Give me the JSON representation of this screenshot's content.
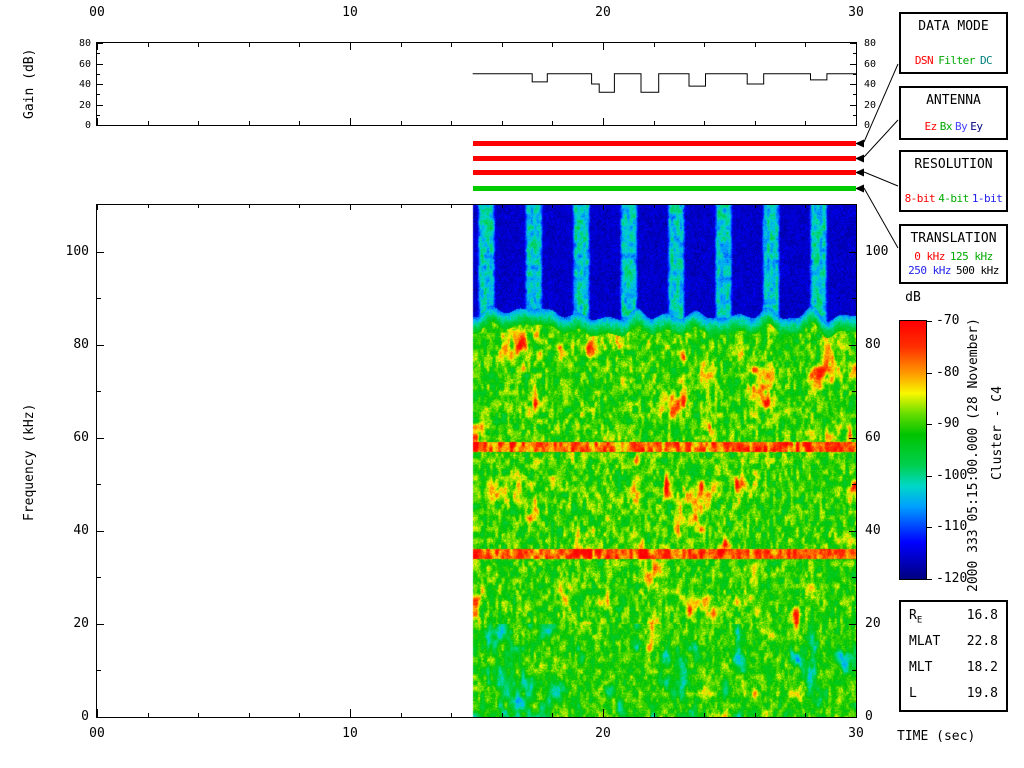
{
  "side_text": {
    "timestamp": "2000 333 05:15:00.000 (28 November)",
    "spacecraft": "Cluster - C4"
  },
  "axes": {
    "gain_label": "Gain (dB)",
    "freq_label": "Frequency (kHz)",
    "time_label": "TIME (sec)",
    "colorbar_label": "dB",
    "time_tick_labels": [
      "00",
      "10",
      "20",
      "30"
    ],
    "time_tick_values": [
      0,
      10,
      20,
      30
    ],
    "gain_tick_values": [
      0,
      20,
      40,
      60,
      80
    ],
    "freq_tick_values": [
      0,
      20,
      40,
      60,
      80,
      100
    ],
    "colorbar_tick_values": [
      -70,
      -80,
      -90,
      -100,
      -110,
      -120
    ]
  },
  "legend_boxes": [
    {
      "title": "DATA MODE",
      "items": [
        {
          "label": "DSN",
          "color": "#ff0000"
        },
        {
          "label": "Filter",
          "color": "#00aa00"
        },
        {
          "label": "DC",
          "color": "#008080"
        }
      ]
    },
    {
      "title": "ANTENNA",
      "items": [
        {
          "label": "Ez",
          "color": "#ff0000"
        },
        {
          "label": "Bx",
          "color": "#00aa00"
        },
        {
          "label": "By",
          "color": "#4444ff"
        },
        {
          "label": "Ey",
          "color": "#000080"
        }
      ]
    },
    {
      "title": "RESOLUTION",
      "items": [
        {
          "label": "8-bit",
          "color": "#ff0000"
        },
        {
          "label": "4-bit",
          "color": "#00aa00"
        },
        {
          "label": "1-bit",
          "color": "#2222ee"
        }
      ]
    },
    {
      "title": "TRANSLATION",
      "items": [
        {
          "label": "0 kHz",
          "color": "#ff0000"
        },
        {
          "label": "125 kHz",
          "color": "#00aa00"
        },
        {
          "label": "250 kHz",
          "color": "#2222ee"
        },
        {
          "label": "500 kHz",
          "color": "#000000"
        }
      ]
    }
  ],
  "status_bars": [
    {
      "name": "data-mode-active-bar",
      "color": "#ff0000",
      "t_start": 14.85,
      "t_end": 30
    },
    {
      "name": "antenna-active-bar",
      "color": "#ff0000",
      "t_start": 14.85,
      "t_end": 30
    },
    {
      "name": "resolution-active-bar",
      "color": "#ff0000",
      "t_start": 14.85,
      "t_end": 30
    },
    {
      "name": "translation-active-bar",
      "color": "#00cc00",
      "t_start": 14.85,
      "t_end": 30
    }
  ],
  "params_box": {
    "rows": [
      {
        "label": "R",
        "label_sub": "E",
        "value": "16.8"
      },
      {
        "label": "MLAT",
        "label_sub": "",
        "value": "22.8"
      },
      {
        "label": "MLT",
        "label_sub": "",
        "value": "18.2"
      },
      {
        "label": "L",
        "label_sub": "",
        "value": "19.8"
      }
    ]
  },
  "chart_data": [
    {
      "type": "line",
      "name": "gain",
      "title": "Gain (dB)",
      "xlabel": "TIME (sec)",
      "ylabel": "Gain (dB)",
      "x_range": [
        0,
        30
      ],
      "y_range": [
        0,
        80
      ],
      "step": true,
      "points": [
        [
          14.85,
          50
        ],
        [
          17.2,
          50
        ],
        [
          17.2,
          42
        ],
        [
          17.8,
          42
        ],
        [
          17.8,
          50
        ],
        [
          19.55,
          50
        ],
        [
          19.55,
          40
        ],
        [
          19.85,
          40
        ],
        [
          19.85,
          32
        ],
        [
          20.45,
          32
        ],
        [
          20.45,
          50
        ],
        [
          21.5,
          50
        ],
        [
          21.5,
          32
        ],
        [
          22.2,
          32
        ],
        [
          22.2,
          50
        ],
        [
          23.4,
          50
        ],
        [
          23.4,
          38
        ],
        [
          24.05,
          38
        ],
        [
          24.05,
          50
        ],
        [
          25.7,
          50
        ],
        [
          25.7,
          40
        ],
        [
          26.35,
          40
        ],
        [
          26.35,
          50
        ],
        [
          28.2,
          50
        ],
        [
          28.2,
          44
        ],
        [
          28.85,
          44
        ],
        [
          28.85,
          50
        ],
        [
          30,
          50
        ]
      ]
    },
    {
      "type": "heatmap",
      "name": "spectrogram",
      "xlabel": "TIME (sec)",
      "ylabel": "Frequency (kHz)",
      "x_range": [
        0,
        30
      ],
      "y_range": [
        0,
        110
      ],
      "data_start_x": 14.85,
      "colorbar": {
        "label": "dB",
        "min": -120,
        "max": -70,
        "ticks": [
          -70,
          -80,
          -90,
          -100,
          -110,
          -120
        ],
        "stops": [
          [
            0.0,
            "#000082"
          ],
          [
            0.14,
            "#0000ff"
          ],
          [
            0.28,
            "#00a0ff"
          ],
          [
            0.36,
            "#00d8c8"
          ],
          [
            0.44,
            "#00d050"
          ],
          [
            0.56,
            "#00c400"
          ],
          [
            0.64,
            "#66dd00"
          ],
          [
            0.72,
            "#f8f800"
          ],
          [
            0.8,
            "#ff9800"
          ],
          [
            0.9,
            "#ff3000"
          ],
          [
            1.0,
            "#ff0000"
          ]
        ]
      },
      "features": {
        "no_data_color": "#ffffff",
        "top_stripe_band": {
          "freq_range": [
            87,
            110
          ],
          "base_db": -117,
          "stripe_db": -103,
          "stripe_period_sec": 1.875,
          "stripe_duty": 0.42
        },
        "transition_band": {
          "freq_range": [
            83.5,
            87
          ],
          "db_from": -109,
          "db_to": -95
        },
        "mid_band": {
          "freq_range": [
            20,
            83.5
          ],
          "base_db": -96,
          "hot_db": -70,
          "hot_lines_khz": [
            58,
            35
          ]
        },
        "low_band": {
          "freq_range": [
            0,
            20
          ],
          "base_db": -95,
          "cold_db": -112
        }
      }
    }
  ]
}
